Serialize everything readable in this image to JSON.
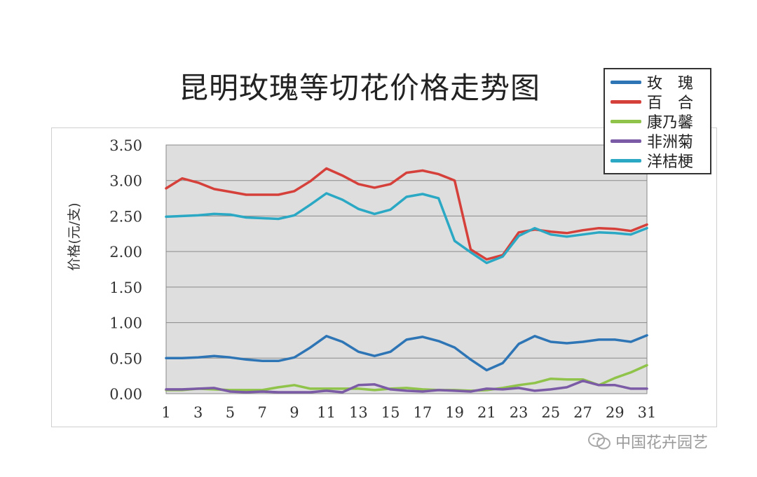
{
  "chart_data": {
    "type": "line",
    "title": "昆明玫瑰等切花价格走势图",
    "ylabel": "价格(元/支)",
    "xlabel": "",
    "ylim": [
      0,
      3.5
    ],
    "xlim": [
      1,
      31
    ],
    "yticks": [
      "0.00",
      "0.50",
      "1.00",
      "1.50",
      "2.00",
      "2.50",
      "3.00",
      "3.50"
    ],
    "xticks": [
      "1",
      "3",
      "5",
      "7",
      "9",
      "11",
      "13",
      "15",
      "17",
      "19",
      "21",
      "23",
      "25",
      "27",
      "29",
      "31"
    ],
    "grid": true,
    "legend_position": "top-right",
    "x": [
      1,
      2,
      3,
      4,
      5,
      6,
      7,
      8,
      9,
      10,
      11,
      12,
      13,
      14,
      15,
      16,
      17,
      18,
      19,
      20,
      21,
      22,
      23,
      24,
      25,
      26,
      27,
      28,
      29,
      30,
      31
    ],
    "series": [
      {
        "name": "玫　瑰",
        "color": "#2e75b6",
        "values": [
          0.5,
          0.5,
          0.51,
          0.53,
          0.51,
          0.48,
          0.46,
          0.46,
          0.51,
          0.65,
          0.81,
          0.73,
          0.59,
          0.53,
          0.59,
          0.76,
          0.8,
          0.74,
          0.65,
          0.48,
          0.33,
          0.43,
          0.7,
          0.81,
          0.73,
          0.71,
          0.73,
          0.76,
          0.76,
          0.73,
          0.82
        ]
      },
      {
        "name": "百　合",
        "color": "#d6403a",
        "values": [
          2.89,
          3.03,
          2.97,
          2.88,
          2.84,
          2.8,
          2.8,
          2.8,
          2.85,
          2.99,
          3.17,
          3.07,
          2.95,
          2.9,
          2.95,
          3.11,
          3.14,
          3.09,
          3.0,
          2.03,
          1.89,
          1.95,
          2.27,
          2.31,
          2.28,
          2.26,
          2.3,
          2.33,
          2.32,
          2.29,
          2.38
        ]
      },
      {
        "name": "康乃馨",
        "color": "#8fc34a",
        "values": [
          0.05,
          0.05,
          0.07,
          0.06,
          0.05,
          0.05,
          0.05,
          0.09,
          0.12,
          0.07,
          0.07,
          0.07,
          0.07,
          0.05,
          0.07,
          0.08,
          0.06,
          0.05,
          0.05,
          0.04,
          0.05,
          0.08,
          0.12,
          0.15,
          0.21,
          0.2,
          0.2,
          0.12,
          0.22,
          0.3,
          0.4
        ]
      },
      {
        "name": "非洲菊",
        "color": "#7b5aa6",
        "values": [
          0.06,
          0.06,
          0.07,
          0.08,
          0.03,
          0.02,
          0.03,
          0.02,
          0.02,
          0.02,
          0.04,
          0.02,
          0.12,
          0.13,
          0.06,
          0.04,
          0.03,
          0.05,
          0.04,
          0.03,
          0.07,
          0.06,
          0.08,
          0.04,
          0.06,
          0.09,
          0.18,
          0.12,
          0.12,
          0.07,
          0.07
        ]
      },
      {
        "name": "洋桔梗",
        "color": "#2aa8c4",
        "values": [
          2.49,
          2.5,
          2.51,
          2.53,
          2.52,
          2.48,
          2.47,
          2.46,
          2.51,
          2.66,
          2.82,
          2.73,
          2.6,
          2.53,
          2.59,
          2.77,
          2.81,
          2.75,
          2.15,
          1.99,
          1.84,
          1.93,
          2.22,
          2.33,
          2.24,
          2.21,
          2.24,
          2.27,
          2.26,
          2.24,
          2.33
        ]
      }
    ]
  },
  "watermark": {
    "text": "中国花卉园艺",
    "icon": "wechat-icon"
  }
}
